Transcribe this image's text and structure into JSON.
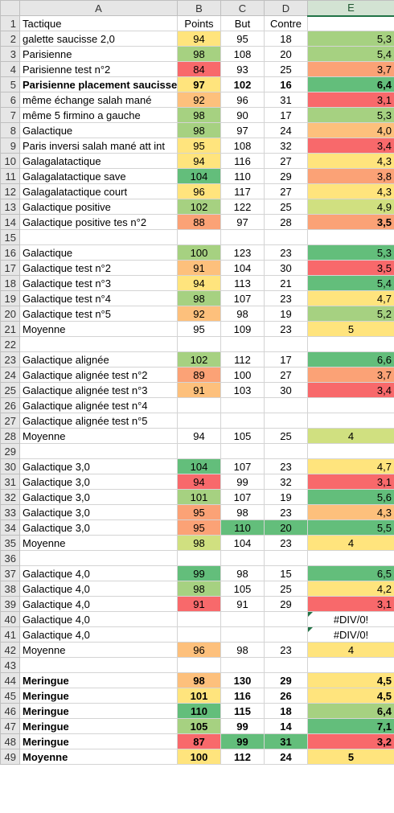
{
  "columns": [
    "A",
    "B",
    "C",
    "D",
    "E"
  ],
  "selected_column": "E",
  "colors": {
    "dg": "#63be7b",
    "lg": "#a6d181",
    "yg": "#d0e080",
    "yl": "#ffe47d",
    "lo": "#fdc07c",
    "or": "#fba276",
    "rd": "#f8696b",
    "none": "#ffffff",
    "err_flag": "#217346"
  },
  "rows": [
    {
      "n": "1",
      "a": "Tactique",
      "b": "Points",
      "c": "But",
      "d": "Contre",
      "e": ""
    },
    {
      "n": "2",
      "a": "galette saucisse 2,0",
      "b": "94",
      "bc": "yl",
      "c": "95",
      "d": "18",
      "e": "5,3",
      "ec": "lg"
    },
    {
      "n": "3",
      "a": "Parisienne",
      "b": "98",
      "bc": "lg",
      "c": "108",
      "d": "20",
      "e": "5,4",
      "ec": "lg"
    },
    {
      "n": "4",
      "a": "Parisienne test n°2",
      "b": "84",
      "bc": "rd",
      "c": "93",
      "d": "25",
      "e": "3,7",
      "ec": "or"
    },
    {
      "n": "5",
      "a": "Parisienne placement saucisse",
      "b": "97",
      "bc": "yl",
      "c": "102",
      "d": "16",
      "e": "6,4",
      "ec": "dg",
      "bold": true
    },
    {
      "n": "6",
      "a": "même échange salah mané",
      "b": "92",
      "bc": "lo",
      "c": "96",
      "d": "31",
      "e": "3,1",
      "ec": "rd"
    },
    {
      "n": "7",
      "a": "même 5 firmino a gauche",
      "b": "98",
      "bc": "lg",
      "c": "90",
      "d": "17",
      "e": "5,3",
      "ec": "lg"
    },
    {
      "n": "8",
      "a": "Galactique",
      "b": "98",
      "bc": "lg",
      "c": "97",
      "d": "24",
      "e": "4,0",
      "ec": "lo"
    },
    {
      "n": "9",
      "a": "Paris inversi salah mané att int",
      "b": "95",
      "bc": "yl",
      "c": "108",
      "d": "32",
      "e": "3,4",
      "ec": "rd"
    },
    {
      "n": "10",
      "a": "Galagalatactique",
      "b": "94",
      "bc": "yl",
      "c": "116",
      "d": "27",
      "e": "4,3",
      "ec": "yl"
    },
    {
      "n": "11",
      "a": "Galagalatactique save",
      "b": "104",
      "bc": "dg",
      "c": "110",
      "d": "29",
      "e": "3,8",
      "ec": "or"
    },
    {
      "n": "12",
      "a": "Galagalatactique court",
      "b": "96",
      "bc": "yl",
      "c": "117",
      "d": "27",
      "e": "4,3",
      "ec": "yl"
    },
    {
      "n": "13",
      "a": "Galactique positive",
      "b": "102",
      "bc": "lg",
      "c": "122",
      "d": "25",
      "e": "4,9",
      "ec": "yg"
    },
    {
      "n": "14",
      "a": "Galactique positive tes n°2",
      "b": "88",
      "bc": "or",
      "c": "97",
      "d": "28",
      "e": "3,5",
      "ec": "or",
      "ebold": true
    },
    {
      "n": "15",
      "a": "",
      "b": "",
      "c": "",
      "d": "",
      "e": ""
    },
    {
      "n": "16",
      "a": "Galactique",
      "b": "100",
      "bc": "lg",
      "c": "123",
      "d": "23",
      "e": "5,3",
      "ec": "dg"
    },
    {
      "n": "17",
      "a": "Galactique test n°2",
      "b": "91",
      "bc": "lo",
      "c": "104",
      "d": "30",
      "e": "3,5",
      "ec": "rd"
    },
    {
      "n": "18",
      "a": "Galactique test n°3",
      "b": "94",
      "bc": "yl",
      "c": "113",
      "d": "21",
      "e": "5,4",
      "ec": "dg"
    },
    {
      "n": "19",
      "a": "Galactique test n°4",
      "b": "98",
      "bc": "lg",
      "c": "107",
      "d": "23",
      "e": "4,7",
      "ec": "yl"
    },
    {
      "n": "20",
      "a": "Galactique test n°5",
      "b": "92",
      "bc": "lo",
      "c": "98",
      "d": "19",
      "e": "5,2",
      "ec": "lg"
    },
    {
      "n": "21",
      "a": "Moyenne",
      "b": "95",
      "c": "109",
      "d": "23",
      "e": "5",
      "ec": "yl",
      "ecenter": true
    },
    {
      "n": "22",
      "a": "",
      "b": "",
      "c": "",
      "d": "",
      "e": ""
    },
    {
      "n": "23",
      "a": "Galactique alignée",
      "b": "102",
      "bc": "lg",
      "c": "112",
      "d": "17",
      "e": "6,6",
      "ec": "dg"
    },
    {
      "n": "24",
      "a": "Galactique alignée test n°2",
      "b": "89",
      "bc": "or",
      "c": "100",
      "d": "27",
      "e": "3,7",
      "ec": "or"
    },
    {
      "n": "25",
      "a": "Galactique alignée test n°3",
      "b": "91",
      "bc": "lo",
      "c": "103",
      "d": "30",
      "e": "3,4",
      "ec": "rd"
    },
    {
      "n": "26",
      "a": "Galactique alignée test n°4",
      "b": "",
      "c": "",
      "d": "",
      "e": ""
    },
    {
      "n": "27",
      "a": "Galactique alignée test n°5",
      "b": "",
      "c": "",
      "d": "",
      "e": ""
    },
    {
      "n": "28",
      "a": "Moyenne",
      "b": "94",
      "c": "105",
      "d": "25",
      "e": "4",
      "ec": "yg",
      "ecenter": true
    },
    {
      "n": "29",
      "a": "",
      "b": "",
      "c": "",
      "d": "",
      "e": ""
    },
    {
      "n": "30",
      "a": "Galactique 3,0",
      "b": "104",
      "bc": "dg",
      "c": "107",
      "d": "23",
      "e": "4,7",
      "ec": "yl"
    },
    {
      "n": "31",
      "a": "Galactique 3,0",
      "b": "94",
      "bc": "rd",
      "c": "99",
      "d": "32",
      "e": "3,1",
      "ec": "rd"
    },
    {
      "n": "32",
      "a": "Galactique 3,0",
      "b": "101",
      "bc": "lg",
      "c": "107",
      "d": "19",
      "e": "5,6",
      "ec": "dg"
    },
    {
      "n": "33",
      "a": "Galactique 3,0",
      "b": "95",
      "bc": "or",
      "c": "98",
      "d": "23",
      "e": "4,3",
      "ec": "lo"
    },
    {
      "n": "34",
      "a": "Galactique 3,0",
      "b": "95",
      "bc": "or",
      "c": "110",
      "cc": "dg",
      "d": "20",
      "dc": "dg",
      "e": "5,5",
      "ec": "dg"
    },
    {
      "n": "35",
      "a": "Moyenne",
      "b": "98",
      "bc": "yg",
      "c": "104",
      "d": "23",
      "e": "4",
      "ec": "yl",
      "ecenter": true
    },
    {
      "n": "36",
      "a": "",
      "b": "",
      "c": "",
      "d": "",
      "e": ""
    },
    {
      "n": "37",
      "a": "Galactique 4,0",
      "b": "99",
      "bc": "dg",
      "c": "98",
      "d": "15",
      "e": "6,5",
      "ec": "dg"
    },
    {
      "n": "38",
      "a": "Galactique 4,0",
      "b": "98",
      "bc": "lg",
      "c": "105",
      "d": "25",
      "e": "4,2",
      "ec": "yl"
    },
    {
      "n": "39",
      "a": "Galactique 4,0",
      "b": "91",
      "bc": "rd",
      "c": "91",
      "d": "29",
      "e": "3,1",
      "ec": "rd"
    },
    {
      "n": "40",
      "a": "Galactique 4,0",
      "b": "",
      "c": "",
      "d": "",
      "e": "#DIV/0!",
      "err": true
    },
    {
      "n": "41",
      "a": "Galactique 4,0",
      "b": "",
      "c": "",
      "d": "",
      "e": "#DIV/0!",
      "err": true
    },
    {
      "n": "42",
      "a": "Moyenne",
      "b": "96",
      "bc": "lo",
      "c": "98",
      "d": "23",
      "e": "4",
      "ec": "yl",
      "ecenter": true
    },
    {
      "n": "43",
      "a": "",
      "b": "",
      "c": "",
      "d": "",
      "e": ""
    },
    {
      "n": "44",
      "a": "Meringue",
      "b": "98",
      "bc": "lo",
      "c": "130",
      "d": "29",
      "e": "4,5",
      "ec": "yl",
      "bold": true
    },
    {
      "n": "45",
      "a": "Meringue",
      "b": "101",
      "bc": "yl",
      "c": "116",
      "d": "26",
      "e": "4,5",
      "ec": "yl",
      "bold": true
    },
    {
      "n": "46",
      "a": "Meringue",
      "b": "110",
      "bc": "dg",
      "c": "115",
      "d": "18",
      "e": "6,4",
      "ec": "lg",
      "bold": true
    },
    {
      "n": "47",
      "a": "Meringue",
      "b": "105",
      "bc": "lg",
      "c": "99",
      "d": "14",
      "e": "7,1",
      "ec": "dg",
      "bold": true
    },
    {
      "n": "48",
      "a": "Meringue",
      "b": "87",
      "bc": "rd",
      "c": "99",
      "cc": "dg",
      "d": "31",
      "dc": "dg",
      "e": "3,2",
      "ec": "rd",
      "bold": true
    },
    {
      "n": "49",
      "a": "Moyenne",
      "b": "100",
      "bc": "yl",
      "c": "112",
      "d": "24",
      "e": "5",
      "ec": "yl",
      "ecenter": true,
      "bold": true
    }
  ]
}
